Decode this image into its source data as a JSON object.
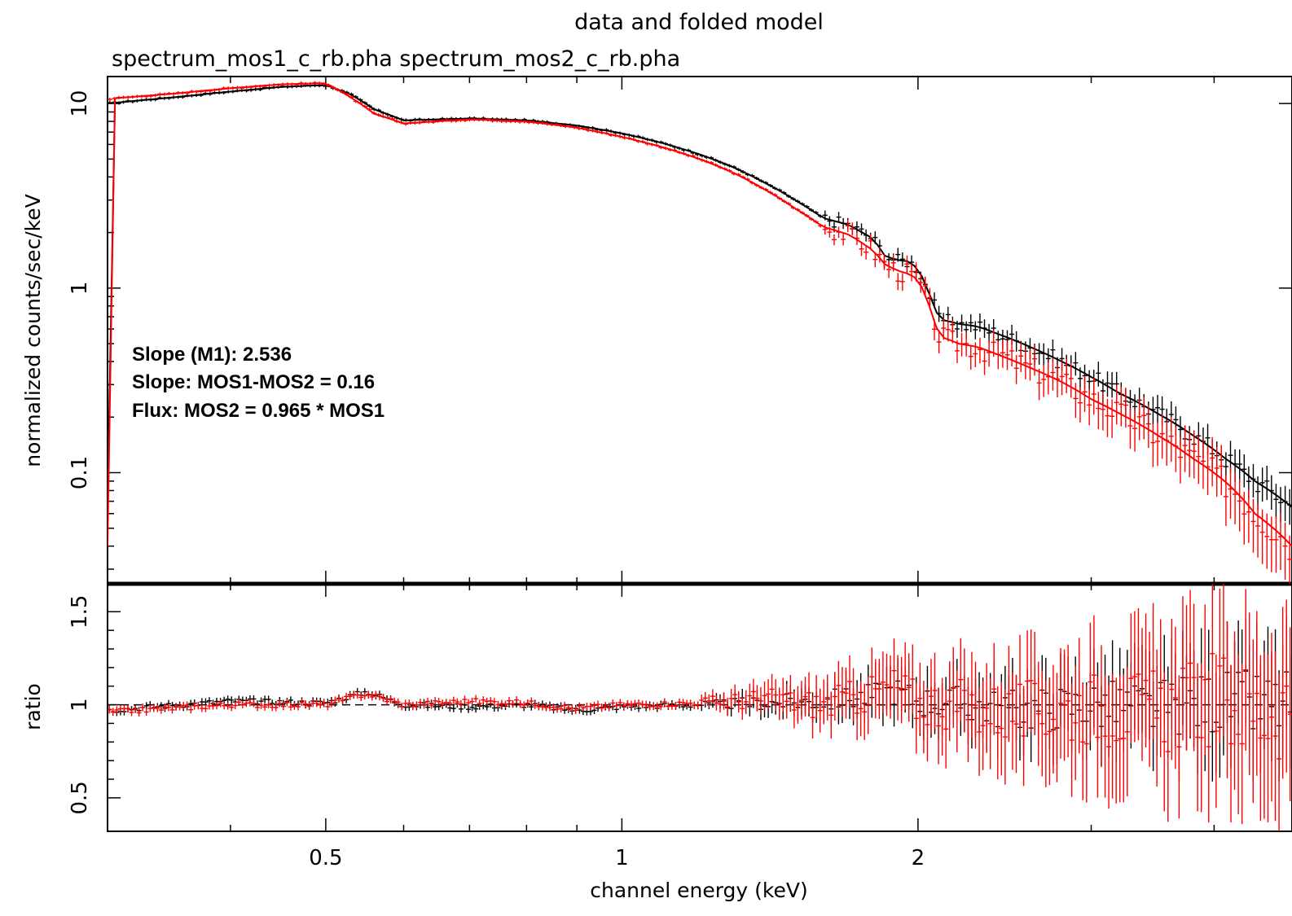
{
  "chart_data": [
    {
      "type": "line",
      "title": "data and folded model",
      "subtitle": "spectrum_mos1_c_rb.pha spectrum_mos2_c_rb.pha",
      "xlabel": "",
      "ylabel": "normalized counts/sec/keV",
      "xscale": "log",
      "yscale": "log",
      "xlim": [
        0.3,
        4.8
      ],
      "ylim": [
        0.025,
        14
      ],
      "yticks": [
        0.1,
        1,
        10
      ],
      "ytick_labels": [
        "0.1",
        "1",
        "10"
      ],
      "grid": false,
      "annotations": [
        "Slope (M1): 2.536",
        "Slope: MOS1-MOS2 = 0.16",
        "Flux: MOS2 = 0.965 * MOS1"
      ],
      "series": [
        {
          "color": "#000000",
          "x": [
            0.3,
            0.35,
            0.4,
            0.45,
            0.5,
            0.53,
            0.56,
            0.6,
            0.7,
            0.8,
            0.9,
            1.0,
            1.1,
            1.2,
            1.3,
            1.4,
            1.5,
            1.6,
            1.7,
            1.8,
            1.85,
            1.9,
            1.95,
            2.0,
            2.05,
            2.1,
            2.2,
            2.3,
            2.4,
            2.6,
            2.8,
            3.0,
            3.2,
            3.5,
            3.8,
            4.1,
            4.4,
            4.8
          ],
          "values": [
            10.0,
            10.8,
            11.6,
            12.3,
            12.6,
            11.2,
            9.3,
            8.1,
            8.3,
            8.1,
            7.6,
            6.9,
            6.1,
            5.3,
            4.5,
            3.7,
            3.0,
            2.4,
            2.2,
            1.85,
            1.5,
            1.42,
            1.4,
            1.28,
            0.95,
            0.68,
            0.64,
            0.62,
            0.57,
            0.48,
            0.4,
            0.33,
            0.27,
            0.21,
            0.16,
            0.12,
            0.09,
            0.065
          ]
        },
        {
          "color": "#ff0000",
          "x": [
            0.3,
            0.35,
            0.4,
            0.45,
            0.5,
            0.53,
            0.56,
            0.6,
            0.7,
            0.8,
            0.9,
            1.0,
            1.1,
            1.2,
            1.3,
            1.4,
            1.5,
            1.6,
            1.7,
            1.8,
            1.85,
            1.9,
            1.95,
            2.0,
            2.05,
            2.1,
            2.2,
            2.3,
            2.4,
            2.6,
            2.8,
            3.0,
            3.2,
            3.5,
            3.8,
            4.1,
            4.4,
            4.8
          ],
          "values": [
            10.6,
            11.3,
            12.1,
            12.7,
            12.9,
            10.8,
            8.8,
            7.8,
            8.2,
            8.0,
            7.4,
            6.6,
            5.8,
            5.0,
            4.2,
            3.4,
            2.7,
            2.15,
            1.95,
            1.6,
            1.35,
            1.25,
            1.2,
            1.12,
            0.82,
            0.55,
            0.5,
            0.48,
            0.44,
            0.37,
            0.31,
            0.25,
            0.21,
            0.16,
            0.12,
            0.09,
            0.06,
            0.04
          ]
        }
      ]
    },
    {
      "type": "line",
      "xlabel": "channel energy (keV)",
      "ylabel": "ratio",
      "xscale": "log",
      "xlim": [
        0.3,
        4.8
      ],
      "ylim": [
        0.32,
        1.65
      ],
      "yticks": [
        0.5,
        1,
        1.5
      ],
      "ytick_labels": [
        "0.5",
        "1",
        "1.5"
      ],
      "xticks": [
        0.5,
        1,
        2
      ],
      "xtick_labels": [
        "0.5",
        "1",
        "2"
      ],
      "reference_line": 1,
      "grid": false,
      "series": [
        {
          "color": "#000000",
          "x": [
            0.3,
            0.4,
            0.5,
            0.55,
            0.6,
            0.7,
            0.8,
            0.9,
            1.0,
            1.2,
            1.4,
            1.6,
            1.8,
            1.9,
            2.0,
            2.2,
            2.5,
            3.0,
            3.5,
            4.0,
            4.5,
            4.8
          ],
          "values": [
            0.97,
            1.02,
            1.01,
            1.07,
            1.0,
            0.99,
            1.0,
            0.97,
            0.99,
            1.0,
            1.01,
            1.02,
            1.05,
            1.08,
            1.02,
            1.01,
            0.97,
            1.0,
            0.98,
            1.02,
            0.99,
            1.01
          ]
        },
        {
          "color": "#ff0000",
          "x": [
            0.3,
            0.4,
            0.5,
            0.55,
            0.6,
            0.7,
            0.8,
            0.9,
            1.0,
            1.2,
            1.4,
            1.6,
            1.8,
            1.9,
            2.0,
            2.2,
            2.5,
            3.0,
            3.5,
            4.0,
            4.5,
            4.8
          ],
          "values": [
            0.96,
            1.0,
            1.0,
            1.06,
            1.0,
            1.02,
            1.01,
            0.98,
            1.0,
            1.01,
            1.03,
            1.0,
            1.06,
            1.1,
            1.01,
            1.0,
            0.95,
            0.99,
            0.96,
            1.03,
            0.95,
            1.02
          ]
        }
      ]
    }
  ]
}
